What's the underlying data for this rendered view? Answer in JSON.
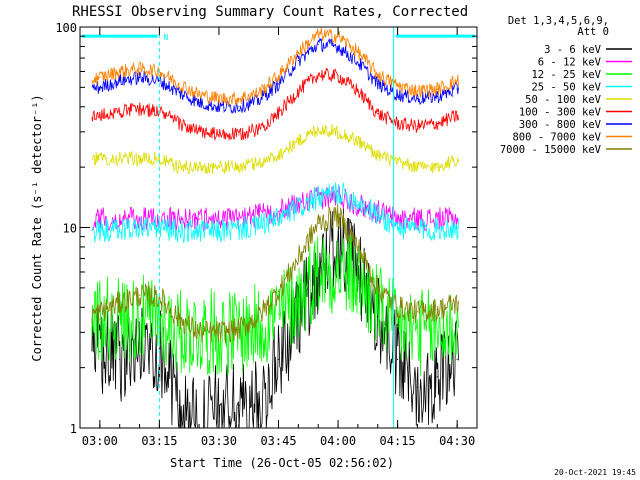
{
  "chart_data": {
    "type": "line",
    "title": "RHESSI Observing Summary Count Rates, Corrected",
    "xlabel": "Start Time (26-Oct-05 02:56:02)",
    "ylabel": "Corrected Count Rate (s⁻¹ detector⁻¹)",
    "ylog": true,
    "ylim": [
      1,
      100
    ],
    "xlim_minutes_after_0300": [
      -5,
      95
    ],
    "x_ticks": [
      {
        "label": "03:00",
        "m": 0
      },
      {
        "label": "03:15",
        "m": 15
      },
      {
        "label": "03:30",
        "m": 30
      },
      {
        "label": "03:45",
        "m": 45
      },
      {
        "label": "04:00",
        "m": 60
      },
      {
        "label": "04:15",
        "m": 75
      },
      {
        "label": "04:30",
        "m": 90
      }
    ],
    "y_ticks": [
      {
        "label": "1",
        "v": 1
      },
      {
        "label": "10",
        "v": 10
      },
      {
        "label": "100",
        "v": 100
      }
    ],
    "legend_header": [
      "Det 1,3,4,5,6,9,",
      "Att 0"
    ],
    "legend_placement": "right",
    "series": [
      {
        "name": "3 - 6 keV",
        "color": "#000000",
        "x": [
          -5,
          0,
          5,
          10,
          15,
          20,
          25,
          30,
          35,
          40,
          45,
          50,
          55,
          60,
          65,
          70,
          75,
          80,
          85,
          90
        ],
        "y": [
          2.5,
          2.4,
          2.2,
          2.5,
          2.5,
          1.3,
          1.0,
          1.3,
          1.3,
          1.3,
          2.2,
          3.6,
          6.0,
          8.8,
          6.0,
          3.6,
          2.2,
          1.6,
          1.8,
          2.2
        ]
      },
      {
        "name": "6 - 12 keV",
        "color": "#ff00ff",
        "x": [
          -5,
          0,
          5,
          10,
          15,
          20,
          25,
          30,
          35,
          40,
          45,
          50,
          55,
          60,
          65,
          70,
          75,
          80,
          85,
          90
        ],
        "y": [
          11,
          11,
          11,
          11,
          11,
          11,
          11,
          11,
          11,
          11.5,
          12,
          13,
          14,
          14.5,
          13,
          12,
          11,
          11,
          11,
          11
        ]
      },
      {
        "name": "12 - 25 keV",
        "color": "#00ff00",
        "x": [
          -5,
          0,
          5,
          10,
          15,
          20,
          25,
          30,
          35,
          40,
          45,
          50,
          55,
          60,
          65,
          70,
          75,
          80,
          85,
          90
        ],
        "y": [
          3.5,
          3.5,
          3.5,
          3.5,
          3.5,
          3.0,
          3.0,
          3.0,
          3.0,
          3.2,
          3.7,
          4.4,
          6.0,
          6.2,
          5.4,
          4.0,
          3.2,
          3.0,
          3.0,
          3.2
        ]
      },
      {
        "name": "25 - 50 keV",
        "color": "#00ffff",
        "x": [
          -5,
          0,
          5,
          10,
          15,
          20,
          25,
          30,
          35,
          40,
          45,
          50,
          55,
          60,
          65,
          70,
          75,
          80,
          85,
          90
        ],
        "y": [
          9.5,
          9.6,
          9.8,
          10,
          10,
          9.6,
          9.6,
          9.6,
          9.8,
          10.2,
          11,
          12.5,
          14,
          15,
          13.5,
          11.5,
          10,
          9.8,
          9.8,
          10
        ]
      },
      {
        "name": "50 - 100 keV",
        "color": "#dddd00",
        "x": [
          -5,
          0,
          5,
          10,
          15,
          20,
          25,
          30,
          35,
          40,
          45,
          50,
          55,
          60,
          65,
          70,
          75,
          80,
          85,
          90
        ],
        "y": [
          22,
          22,
          22,
          22,
          22,
          20,
          20,
          20,
          20,
          21,
          23,
          27,
          31,
          30,
          27,
          23,
          21,
          20,
          20,
          22
        ]
      },
      {
        "name": "100 - 300 keV",
        "color": "#ff0000",
        "x": [
          -5,
          0,
          5,
          10,
          15,
          20,
          25,
          30,
          35,
          40,
          45,
          50,
          55,
          60,
          65,
          70,
          75,
          80,
          85,
          90
        ],
        "y": [
          35,
          36,
          38,
          39,
          38,
          33,
          30,
          29,
          29,
          31,
          37,
          48,
          58,
          57,
          48,
          37,
          33,
          32,
          33,
          36
        ]
      },
      {
        "name": "300 - 800 keV",
        "color": "#0000ff",
        "x": [
          -5,
          0,
          5,
          10,
          15,
          20,
          25,
          30,
          35,
          40,
          45,
          50,
          55,
          60,
          65,
          70,
          75,
          80,
          85,
          90
        ],
        "y": [
          48,
          50,
          54,
          56,
          54,
          47,
          42,
          40,
          40,
          43,
          52,
          68,
          82,
          80,
          67,
          52,
          46,
          44,
          45,
          49
        ]
      },
      {
        "name": "800 - 7000 keV",
        "color": "#ff8000",
        "x": [
          -5,
          0,
          5,
          10,
          15,
          20,
          25,
          30,
          35,
          40,
          45,
          50,
          55,
          60,
          65,
          70,
          75,
          80,
          85,
          90
        ],
        "y": [
          53,
          56,
          60,
          62,
          60,
          52,
          46,
          44,
          44,
          47,
          57,
          75,
          92,
          90,
          75,
          58,
          51,
          48,
          49,
          54
        ]
      },
      {
        "name": "7000 - 15000 keV",
        "color": "#808000",
        "x": [
          -5,
          0,
          5,
          10,
          15,
          20,
          25,
          30,
          35,
          40,
          45,
          50,
          55,
          60,
          65,
          70,
          75,
          80,
          85,
          90
        ],
        "y": [
          3.5,
          3.8,
          4.2,
          4.6,
          4.5,
          3.5,
          3.0,
          3.0,
          3.1,
          3.6,
          4.8,
          7.0,
          10.5,
          11.5,
          8.0,
          5.0,
          4.0,
          3.8,
          3.9,
          4.2
        ]
      }
    ],
    "annotations": {
      "night_label": "N",
      "night_bars_minutes": [
        [
          -5,
          15
        ],
        [
          74,
          95
        ]
      ],
      "night_bar_level": 90,
      "vlines_solid_minutes": [
        74
      ],
      "vlines_dashed_minutes": [
        15,
        95
      ]
    },
    "timestamp": "20-Oct-2021 19:45"
  }
}
